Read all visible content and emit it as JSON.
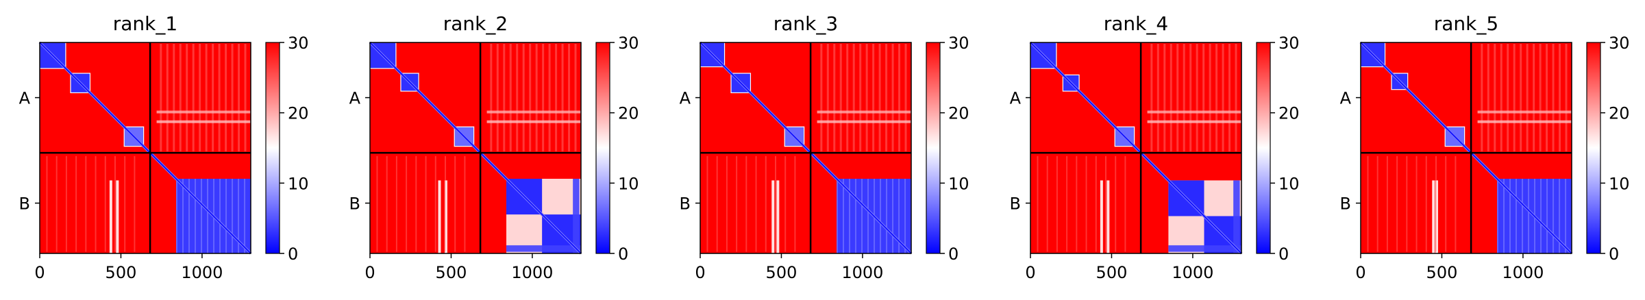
{
  "chart_data": {
    "type": "heatmap",
    "panels": [
      {
        "title": "rank_1",
        "variant": 0
      },
      {
        "title": "rank_2",
        "variant": 1
      },
      {
        "title": "rank_3",
        "variant": 2
      },
      {
        "title": "rank_4",
        "variant": 3
      },
      {
        "title": "rank_5",
        "variant": 4
      }
    ],
    "xlim": [
      0,
      1300
    ],
    "ylim": [
      1300,
      0
    ],
    "xticks": [
      0,
      500,
      1000
    ],
    "xtick_labels": [
      "0",
      "500",
      "1000"
    ],
    "chains": [
      {
        "label": "A",
        "start": 0,
        "end": 680
      },
      {
        "label": "B",
        "start": 680,
        "end": 1300
      }
    ],
    "chain_boundary": 680,
    "colorbar": {
      "range": [
        0,
        30
      ],
      "ticks": [
        0,
        10,
        20,
        30
      ],
      "tick_labels": [
        "0",
        "10",
        "20",
        "30"
      ],
      "colormap": "bwr",
      "colors": {
        "low": "#0000ff",
        "mid": "#ffffff",
        "high": "#ff0000"
      }
    },
    "grid": false
  }
}
